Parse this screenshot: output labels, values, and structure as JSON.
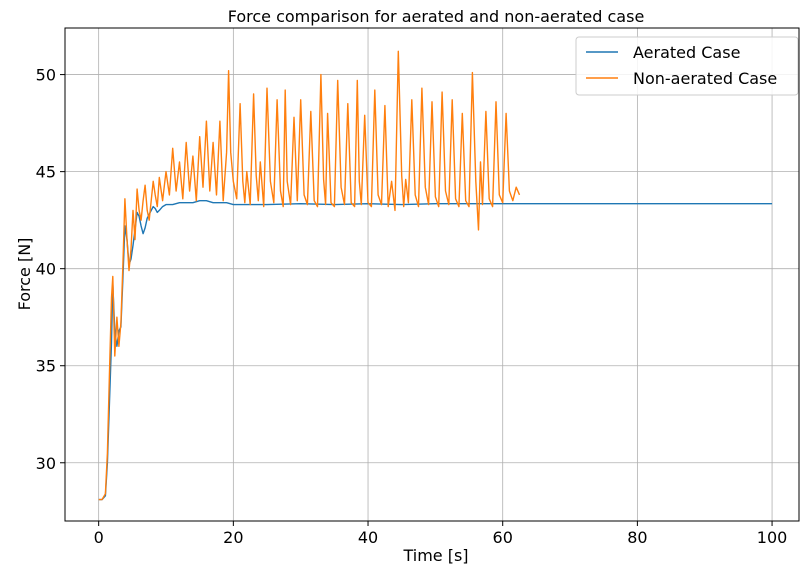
{
  "chart_data": {
    "type": "line",
    "title": "Force comparison for aerated and non-aerated case",
    "xlabel": "Time [s]",
    "ylabel": "Force [N]",
    "xlim": [
      -5,
      104
    ],
    "ylim": [
      27.0,
      52.4
    ],
    "xticks": [
      0,
      20,
      40,
      60,
      80,
      100
    ],
    "yticks": [
      30,
      35,
      40,
      45,
      50
    ],
    "xtick_labels": [
      "0",
      "20",
      "40",
      "60",
      "80",
      "100"
    ],
    "ytick_labels": [
      "30",
      "35",
      "40",
      "45",
      "50"
    ],
    "grid": true,
    "legend_position": "top-right",
    "series": [
      {
        "name": "Aerated Case",
        "color": "#1f77b4",
        "x": [
          0,
          0.5,
          1.0,
          1.3,
          1.6,
          1.9,
          2.1,
          2.4,
          2.7,
          3.0,
          3.3,
          3.6,
          3.9,
          4.2,
          4.5,
          4.8,
          5.1,
          5.4,
          5.7,
          6.0,
          6.3,
          6.6,
          6.9,
          7.2,
          7.5,
          7.8,
          8.1,
          8.4,
          8.7,
          9.0,
          9.5,
          10,
          11,
          12,
          13,
          14,
          15,
          16,
          17,
          18,
          19,
          20,
          22,
          25,
          30,
          35,
          40,
          45,
          50,
          55,
          60,
          65,
          70,
          75,
          80,
          85,
          90,
          95,
          100
        ],
        "y": [
          28.1,
          28.1,
          28.3,
          30.0,
          33.0,
          36.2,
          39.2,
          36.8,
          36.0,
          36.8,
          37.0,
          39.5,
          42.2,
          41.5,
          40.2,
          40.5,
          41.2,
          42.0,
          42.9,
          42.7,
          42.2,
          41.8,
          42.1,
          42.6,
          42.8,
          43.0,
          43.2,
          43.1,
          42.9,
          43.0,
          43.2,
          43.3,
          43.3,
          43.4,
          43.4,
          43.4,
          43.5,
          43.5,
          43.4,
          43.4,
          43.4,
          43.3,
          43.3,
          43.3,
          43.35,
          43.3,
          43.35,
          43.3,
          43.35,
          43.35,
          43.35,
          43.35,
          43.35,
          43.35,
          43.35,
          43.35,
          43.35,
          43.35,
          43.35
        ]
      },
      {
        "name": "Non-aerated Case",
        "color": "#ff7f0e",
        "x": [
          0,
          0.5,
          1.0,
          1.3,
          1.6,
          1.9,
          2.1,
          2.4,
          2.7,
          3.0,
          3.3,
          3.6,
          3.9,
          4.2,
          4.5,
          4.8,
          5.1,
          5.4,
          5.7,
          6.0,
          6.3,
          6.6,
          6.9,
          7.2,
          7.5,
          7.8,
          8.1,
          8.4,
          8.7,
          9.0,
          9.5,
          10,
          10.5,
          11,
          11.5,
          12,
          12.5,
          13,
          13.5,
          14,
          14.5,
          15,
          15.5,
          16,
          16.5,
          17,
          17.5,
          18,
          18.5,
          19,
          19.3,
          19.6,
          20,
          20.5,
          21,
          21.4,
          21.7,
          22,
          22.5,
          23,
          23.4,
          23.7,
          24,
          24.5,
          25,
          25.5,
          26,
          26.5,
          27,
          27.4,
          27.7,
          28,
          28.5,
          29,
          29.5,
          30,
          30.5,
          31,
          31.5,
          32,
          32.5,
          33,
          33.4,
          33.7,
          34,
          34.5,
          35,
          35.5,
          36,
          36.5,
          37,
          37.5,
          38,
          38.4,
          38.7,
          39,
          39.5,
          40,
          40.5,
          41,
          41.5,
          42,
          42.5,
          43,
          43.5,
          44,
          44.5,
          45,
          45.3,
          45.6,
          46,
          46.5,
          47,
          47.5,
          48,
          48.5,
          49,
          49.5,
          50,
          50.5,
          51,
          51.5,
          52,
          52.5,
          53,
          53.5,
          54,
          54.5,
          55,
          55.5,
          56,
          56.4,
          56.7,
          57,
          57.5,
          58,
          58.5,
          59,
          59.5,
          60,
          60.5,
          61,
          61.5,
          62,
          62.5
        ],
        "y": [
          28.1,
          28.1,
          28.4,
          30.5,
          34.5,
          38.5,
          39.6,
          35.5,
          37.5,
          36.0,
          37.2,
          40.2,
          43.6,
          41.5,
          39.9,
          41.0,
          43.0,
          41.5,
          44.1,
          43.0,
          42.5,
          43.5,
          44.3,
          43.0,
          42.5,
          43.5,
          44.5,
          43.8,
          43.2,
          44.7,
          43.5,
          45.0,
          43.8,
          46.2,
          44.0,
          45.5,
          43.6,
          46.5,
          44.0,
          45.8,
          43.5,
          46.8,
          44.2,
          47.6,
          44.0,
          46.5,
          43.8,
          47.6,
          43.5,
          46.0,
          50.2,
          46.0,
          44.5,
          43.6,
          48.5,
          44.5,
          43.4,
          45.0,
          43.3,
          49.0,
          44.8,
          43.5,
          45.5,
          43.2,
          49.3,
          44.5,
          43.4,
          48.7,
          44.0,
          43.2,
          49.2,
          44.5,
          43.3,
          47.8,
          43.5,
          48.7,
          43.8,
          43.3,
          48.1,
          43.5,
          43.2,
          50.0,
          44.6,
          43.3,
          48.0,
          43.4,
          43.2,
          49.7,
          44.2,
          43.3,
          48.5,
          43.4,
          43.2,
          49.7,
          44.5,
          43.3,
          47.9,
          43.4,
          43.2,
          49.2,
          43.8,
          43.3,
          48.4,
          43.2,
          44.5,
          43.0,
          51.2,
          44.8,
          43.2,
          44.6,
          43.4,
          48.7,
          43.8,
          43.2,
          49.3,
          44.2,
          43.3,
          48.6,
          43.7,
          43.2,
          49.1,
          44.0,
          43.3,
          48.7,
          43.6,
          43.2,
          48.0,
          43.5,
          43.2,
          50.1,
          44.5,
          42.0,
          45.5,
          43.3,
          48.1,
          43.6,
          43.2,
          48.6,
          43.8,
          43.4,
          48.0,
          44.0,
          43.5,
          44.2,
          43.8
        ]
      }
    ]
  }
}
